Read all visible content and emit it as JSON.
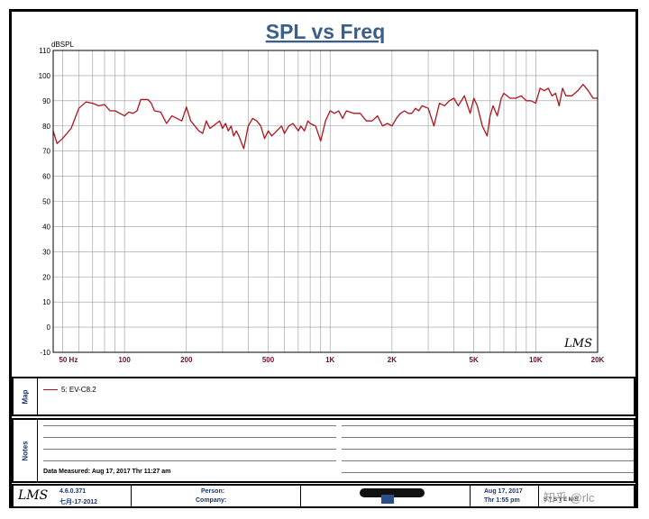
{
  "chart_data": {
    "type": "line",
    "title": "SPL vs Freq",
    "ylabel": "dBSPL",
    "xlabel": "",
    "xscale": "log",
    "xlim": [
      45,
      20000
    ],
    "ylim": [
      -10,
      110
    ],
    "yticks": [
      -10,
      0,
      10,
      20,
      30,
      40,
      50,
      60,
      70,
      80,
      90,
      100,
      110
    ],
    "xticks": [
      {
        "value": 50,
        "label": "50  Hz"
      },
      {
        "value": 100,
        "label": "100"
      },
      {
        "value": 200,
        "label": "200"
      },
      {
        "value": 500,
        "label": "500"
      },
      {
        "value": 1000,
        "label": "1K"
      },
      {
        "value": 2000,
        "label": "2K"
      },
      {
        "value": 5000,
        "label": "5K"
      },
      {
        "value": 10000,
        "label": "10K"
      },
      {
        "value": 20000,
        "label": "20K"
      }
    ],
    "grid": true,
    "series": [
      {
        "name": "5: EV-C8.2",
        "color": "#b0141c",
        "x": [
          45,
          47,
          50,
          55,
          60,
          65,
          70,
          75,
          80,
          85,
          90,
          95,
          100,
          105,
          110,
          115,
          120,
          125,
          130,
          135,
          140,
          150,
          160,
          170,
          180,
          190,
          200,
          210,
          220,
          230,
          240,
          250,
          260,
          270,
          280,
          290,
          300,
          310,
          320,
          330,
          340,
          350,
          360,
          380,
          400,
          420,
          440,
          460,
          480,
          500,
          520,
          550,
          580,
          600,
          630,
          660,
          700,
          720,
          750,
          780,
          800,
          850,
          900,
          950,
          1000,
          1050,
          1100,
          1150,
          1200,
          1300,
          1400,
          1500,
          1600,
          1700,
          1800,
          1900,
          2000,
          2100,
          2200,
          2300,
          2400,
          2500,
          2600,
          2700,
          2800,
          3000,
          3200,
          3400,
          3600,
          3800,
          4000,
          4200,
          4500,
          4800,
          5000,
          5200,
          5500,
          5800,
          6000,
          6200,
          6500,
          6800,
          7000,
          7500,
          8000,
          8500,
          9000,
          9500,
          10000,
          10500,
          11000,
          11500,
          12000,
          12500,
          13000,
          13500,
          14000,
          15000,
          16000,
          17000,
          18000,
          19000,
          20000
        ],
        "y": [
          78,
          73,
          75,
          79,
          87,
          89.5,
          89,
          88,
          88.5,
          86,
          86,
          85,
          84,
          85.5,
          85,
          86,
          90.5,
          90.5,
          90.5,
          89,
          86,
          85.5,
          81,
          84,
          83,
          82,
          87.5,
          82,
          80,
          78,
          77,
          82,
          79,
          80,
          81,
          82,
          79,
          81,
          78,
          80,
          76,
          78,
          76,
          71,
          80,
          83,
          82,
          80,
          75,
          78,
          76,
          78,
          80,
          77,
          80,
          81,
          78,
          80,
          78,
          82,
          81,
          80,
          74,
          82,
          86,
          85,
          86,
          83,
          86,
          85,
          85,
          82,
          82,
          84,
          80,
          81,
          80,
          83,
          85,
          86,
          85,
          85,
          87,
          86,
          88,
          87,
          80,
          89,
          88,
          90,
          91,
          88,
          92,
          85,
          91,
          88,
          80,
          76,
          84,
          88,
          84,
          91,
          93,
          91,
          91,
          92,
          90,
          90,
          89,
          95,
          94,
          95,
          92,
          93,
          88,
          95,
          92,
          92,
          94,
          96.5,
          94,
          91,
          91
        ]
      }
    ],
    "watermark": "LMS"
  },
  "map": {
    "label": "Map"
  },
  "notes": {
    "label": "Notes",
    "measured": "Data Measured: Aug 17, 2017  Thr 11:27 am"
  },
  "footer": {
    "version": "4.6.0.371",
    "date": "七月-17-2012",
    "person_label": "Person:",
    "company_label": "Company:",
    "print_date": "Aug 17, 2017",
    "print_time": "Thr  1:55 pm",
    "systems": "S Y S T E M S",
    "overlay": "知乎 @rlc"
  }
}
